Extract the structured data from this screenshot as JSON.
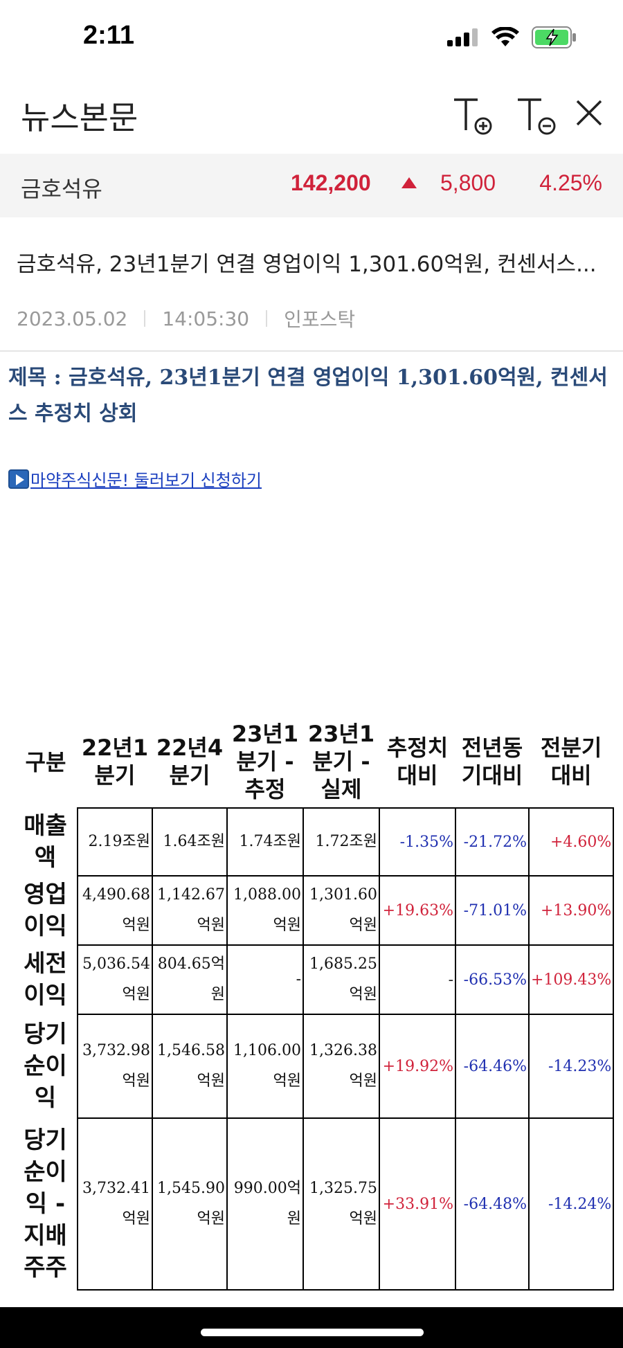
{
  "status_bar": {
    "time": "2:11"
  },
  "nav": {
    "title": "뉴스본문"
  },
  "stock": {
    "name": "금호석유",
    "price": "142,200",
    "change": "5,800",
    "rate": "4.25%",
    "up_color": "#d0223a"
  },
  "news": {
    "headline": "금호석유, 23년1분기 연결 영업이익 1,301.60억원, 컨센서스...",
    "date": "2023.05.02",
    "time": "14:05:30",
    "source": "인포스탁"
  },
  "article": {
    "title": "제목 : 금호석유, 23년1분기 연결 영업이익 1,301.60억원, 컨센서스 추정치 상회",
    "promo_link": "마약주식신문! 둘러보기 신청하기"
  },
  "table": {
    "headers": [
      "구분",
      "22년1 분기",
      "22년4 분기",
      "23년1 분기 - 추정",
      "23년1 분기 - 실제",
      "추정치 대비",
      "전년동 기대비",
      "전분기 대비"
    ],
    "rows": [
      {
        "label": "매출액",
        "values": [
          "2.19조원",
          "1.64조원",
          "1.74조원",
          "1.72조원"
        ],
        "pcts": [
          "-1.35%",
          "-21.72%",
          "+4.60%"
        ]
      },
      {
        "label": "영업이익",
        "values": [
          "4,490.68억원",
          "1,142.67억원",
          "1,088.00억원",
          "1,301.60억원"
        ],
        "pcts": [
          "+19.63%",
          "-71.01%",
          "+13.90%"
        ]
      },
      {
        "label": "세전이익",
        "values": [
          "5,036.54억원",
          "804.65억원",
          "-",
          "1,685.25억원"
        ],
        "pcts": [
          "-",
          "-66.53%",
          "+109.43%"
        ]
      },
      {
        "label": "당기순이익",
        "values": [
          "3,732.98억원",
          "1,546.58억원",
          "1,106.00억원",
          "1,326.38억원"
        ],
        "pcts": [
          "+19.92%",
          "-64.46%",
          "-14.23%"
        ]
      },
      {
        "label": "당기순이익 - 지배주주",
        "values": [
          "3,732.41억원",
          "1,545.90억원",
          "990.00억원",
          "1,325.75억원"
        ],
        "pcts": [
          "+33.91%",
          "-64.48%",
          "-14.24%"
        ]
      }
    ]
  },
  "colors": {
    "positive": "#d0223a",
    "negative": "#1f2fb0",
    "title_blue": "#2a4a78"
  }
}
